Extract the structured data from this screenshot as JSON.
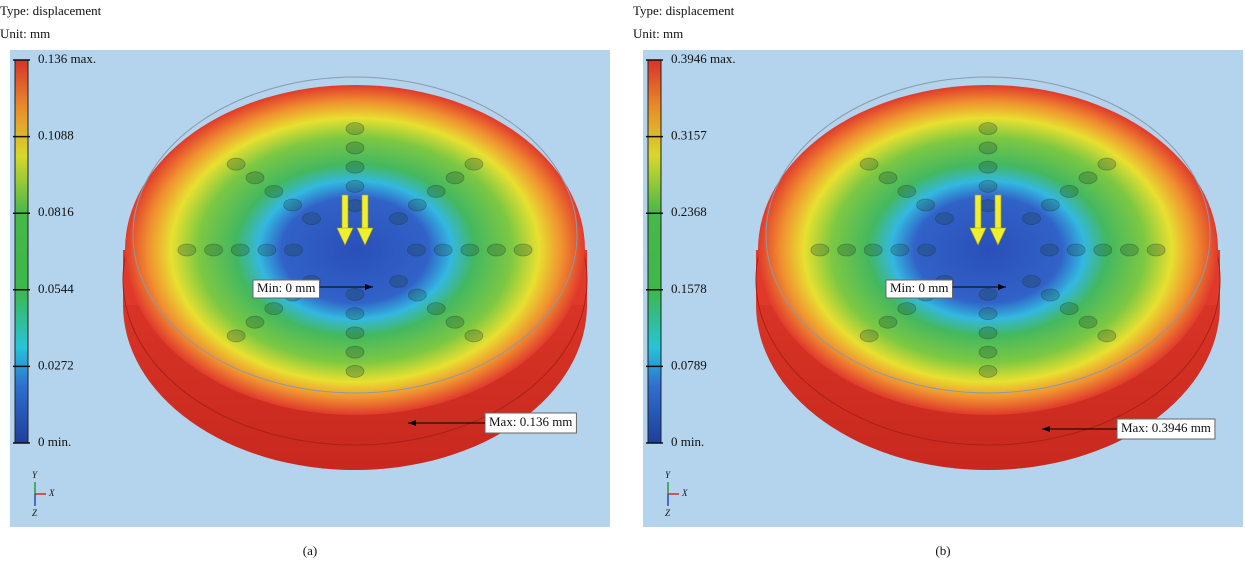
{
  "panels": [
    {
      "type_line": "Type: displacement",
      "unit_line": "Unit: mm",
      "legend_labels": [
        "0.136 max.",
        "0.1088",
        "0.0816",
        "0.0544",
        "0.0272",
        "0 min."
      ],
      "min_label": "Min: 0 mm",
      "max_label": "Max: 0.136 mm",
      "axes": {
        "y": "Y",
        "x": "X",
        "z": "Z"
      },
      "caption": "(a)"
    },
    {
      "type_line": "Type: displacement",
      "unit_line": "Unit: mm",
      "legend_labels": [
        "0.3946 max.",
        "0.3157",
        "0.2368",
        "0.1578",
        "0.0789",
        "0 min."
      ],
      "min_label": "Min: 0 mm",
      "max_label": "Max: 0.3946 mm",
      "axes": {
        "y": "Y",
        "x": "X",
        "z": "Z"
      },
      "caption": "(b)"
    }
  ]
}
